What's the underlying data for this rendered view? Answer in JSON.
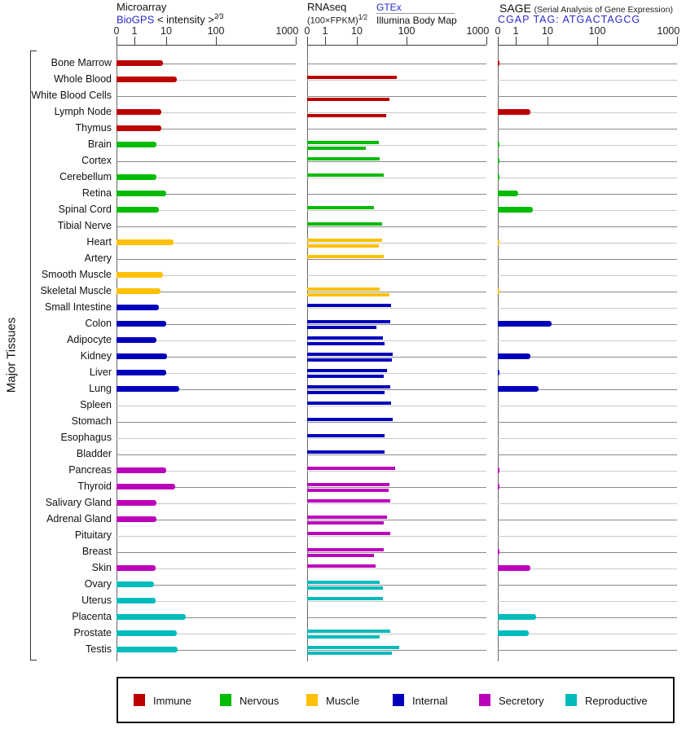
{
  "panels": [
    {
      "title": "Microarray",
      "link": "BioGPS",
      "scale_label": " < intensity >",
      "scale_sup": "2⁄3"
    },
    {
      "title": "RNAseq",
      "formula": "(100×FPKM)",
      "formula_sup": "1⁄2",
      "link": "GTEx",
      "second_source": "Illumina Body Map"
    },
    {
      "title": "SAGE",
      "title_note": "(Serial Analysis of Gene Expression)",
      "link": "CGAP",
      "tag_label": "TAG: ATGACTAGCG"
    }
  ],
  "axis_ticks": [
    "0",
    "1",
    "10",
    "100",
    "1000"
  ],
  "side_label": "Major Tissues",
  "legend": [
    {
      "label": "Immune",
      "color": "#bb0000"
    },
    {
      "label": "Nervous",
      "color": "#00bb00"
    },
    {
      "label": "Muscle",
      "color": "#ffc000"
    },
    {
      "label": "Internal",
      "color": "#0000bb"
    },
    {
      "label": "Secretory",
      "color": "#bb00bb"
    },
    {
      "label": "Reproductive",
      "color": "#00bbbb"
    }
  ],
  "chart_data": {
    "type": "bar",
    "orientation": "horizontal",
    "scale": "nonlinear axis, ticks 0/1/10/100/1000 at fractions 0/0.10/0.278/0.556/1.0 of panel width",
    "panels": [
      "Microarray (BioGPS)",
      "RNAseq (GTEx upper bar, Illumina Body Map lower bar)",
      "SAGE (CGAP)"
    ],
    "xlim": [
      0,
      1000
    ],
    "tissues": [
      {
        "tissue": "Bone Marrow",
        "category": "Immune",
        "microarray": 8,
        "rnaseq_gtex": null,
        "rnaseq_illumina": null,
        "sage": 0.1
      },
      {
        "tissue": "Whole Blood",
        "category": "Immune",
        "microarray": 16,
        "rnaseq_gtex": 63,
        "rnaseq_illumina": null,
        "sage": null
      },
      {
        "tissue": "White Blood Cells",
        "category": "Immune",
        "microarray": null,
        "rnaseq_gtex": null,
        "rnaseq_illumina": 45,
        "sage": null
      },
      {
        "tissue": "Lymph Node",
        "category": "Immune",
        "microarray": 7,
        "rnaseq_gtex": null,
        "rnaseq_illumina": 38,
        "sage": 2.9
      },
      {
        "tissue": "Thymus",
        "category": "Immune",
        "microarray": 7,
        "rnaseq_gtex": null,
        "rnaseq_illumina": null,
        "sage": null
      },
      {
        "tissue": "Brain",
        "category": "Nervous",
        "microarray": 5,
        "rnaseq_gtex": 27,
        "rnaseq_illumina": 15,
        "sage": 0.1
      },
      {
        "tissue": "Cortex",
        "category": "Nervous",
        "microarray": null,
        "rnaseq_gtex": 29,
        "rnaseq_illumina": null,
        "sage": 0.1
      },
      {
        "tissue": "Cerebellum",
        "category": "Nervous",
        "microarray": 5,
        "rnaseq_gtex": 35,
        "rnaseq_illumina": null,
        "sage": 0.1
      },
      {
        "tissue": "Retina",
        "category": "Nervous",
        "microarray": 10,
        "rnaseq_gtex": null,
        "rnaseq_illumina": null,
        "sage": 1.2
      },
      {
        "tissue": "Spinal Cord",
        "category": "Nervous",
        "microarray": 6,
        "rnaseq_gtex": 22,
        "rnaseq_illumina": null,
        "sage": 3.5
      },
      {
        "tissue": "Tibial Nerve",
        "category": "Nervous",
        "microarray": null,
        "rnaseq_gtex": 32,
        "rnaseq_illumina": null,
        "sage": null
      },
      {
        "tissue": "Heart",
        "category": "Muscle",
        "microarray": 14,
        "rnaseq_gtex": 32,
        "rnaseq_illumina": 27,
        "sage": 0.1
      },
      {
        "tissue": "Artery",
        "category": "Muscle",
        "microarray": null,
        "rnaseq_gtex": 35,
        "rnaseq_illumina": null,
        "sage": null
      },
      {
        "tissue": "Smooth Muscle",
        "category": "Muscle",
        "microarray": 8,
        "rnaseq_gtex": null,
        "rnaseq_illumina": null,
        "sage": null
      },
      {
        "tissue": "Skeletal Muscle",
        "category": "Muscle",
        "microarray": 6.5,
        "rnaseq_gtex": 29,
        "rnaseq_illumina": 45,
        "sage": 0.1
      },
      {
        "tissue": "Small Intestine",
        "category": "Internal",
        "microarray": 6,
        "rnaseq_gtex": 48,
        "rnaseq_illumina": null,
        "sage": null
      },
      {
        "tissue": "Colon",
        "category": "Internal",
        "microarray": 10,
        "rnaseq_gtex": 46,
        "rnaseq_illumina": 25,
        "sage": 12
      },
      {
        "tissue": "Adipocyte",
        "category": "Internal",
        "microarray": 5,
        "rnaseq_gtex": 33,
        "rnaseq_illumina": 36,
        "sage": null
      },
      {
        "tissue": "Kidney",
        "category": "Internal",
        "microarray": 10.5,
        "rnaseq_gtex": 53,
        "rnaseq_illumina": 50,
        "sage": 2.9
      },
      {
        "tissue": "Liver",
        "category": "Internal",
        "microarray": 10,
        "rnaseq_gtex": 40,
        "rnaseq_illumina": 35,
        "sage": 0.1
      },
      {
        "tissue": "Lung",
        "category": "Internal",
        "microarray": 18,
        "rnaseq_gtex": 47,
        "rnaseq_illumina": 36,
        "sage": 5.3
      },
      {
        "tissue": "Spleen",
        "category": "Internal",
        "microarray": null,
        "rnaseq_gtex": 48,
        "rnaseq_illumina": null,
        "sage": null
      },
      {
        "tissue": "Stomach",
        "category": "Internal",
        "microarray": null,
        "rnaseq_gtex": 53,
        "rnaseq_illumina": null,
        "sage": null
      },
      {
        "tissue": "Esophagus",
        "category": "Internal",
        "microarray": null,
        "rnaseq_gtex": 36,
        "rnaseq_illumina": null,
        "sage": null
      },
      {
        "tissue": "Bladder",
        "category": "Internal",
        "microarray": null,
        "rnaseq_gtex": 36,
        "rnaseq_illumina": null,
        "sage": null
      },
      {
        "tissue": "Pancreas",
        "category": "Secretory",
        "microarray": 10,
        "rnaseq_gtex": 58,
        "rnaseq_illumina": null,
        "sage": 0.1
      },
      {
        "tissue": "Thyroid",
        "category": "Secretory",
        "microarray": 15,
        "rnaseq_gtex": 44,
        "rnaseq_illumina": 43,
        "sage": 0.1
      },
      {
        "tissue": "Salivary Gland",
        "category": "Secretory",
        "microarray": 5,
        "rnaseq_gtex": 46,
        "rnaseq_illumina": null,
        "sage": null
      },
      {
        "tissue": "Adrenal Gland",
        "category": "Secretory",
        "microarray": 5,
        "rnaseq_gtex": 40,
        "rnaseq_illumina": 34,
        "sage": null
      },
      {
        "tissue": "Pituitary",
        "category": "Secretory",
        "microarray": null,
        "rnaseq_gtex": 46,
        "rnaseq_illumina": null,
        "sage": null
      },
      {
        "tissue": "Breast",
        "category": "Secretory",
        "microarray": null,
        "rnaseq_gtex": 34,
        "rnaseq_illumina": 22,
        "sage": 0.1
      },
      {
        "tissue": "Skin",
        "category": "Secretory",
        "microarray": 4.5,
        "rnaseq_gtex": 24,
        "rnaseq_illumina": null,
        "sage": 2.9
      },
      {
        "tissue": "Ovary",
        "category": "Reproductive",
        "microarray": 4.2,
        "rnaseq_gtex": 29,
        "rnaseq_illumina": 33,
        "sage": null
      },
      {
        "tissue": "Uterus",
        "category": "Reproductive",
        "microarray": 4.5,
        "rnaseq_gtex": 33,
        "rnaseq_illumina": null,
        "sage": null
      },
      {
        "tissue": "Placenta",
        "category": "Reproductive",
        "microarray": 25,
        "rnaseq_gtex": null,
        "rnaseq_illumina": null,
        "sage": 4.3
      },
      {
        "tissue": "Prostate",
        "category": "Reproductive",
        "microarray": 16.5,
        "rnaseq_gtex": 46,
        "rnaseq_illumina": 29,
        "sage": 2.5
      },
      {
        "tissue": "Testis",
        "category": "Reproductive",
        "microarray": 17,
        "rnaseq_gtex": 70,
        "rnaseq_illumina": 51,
        "sage": null
      }
    ]
  }
}
